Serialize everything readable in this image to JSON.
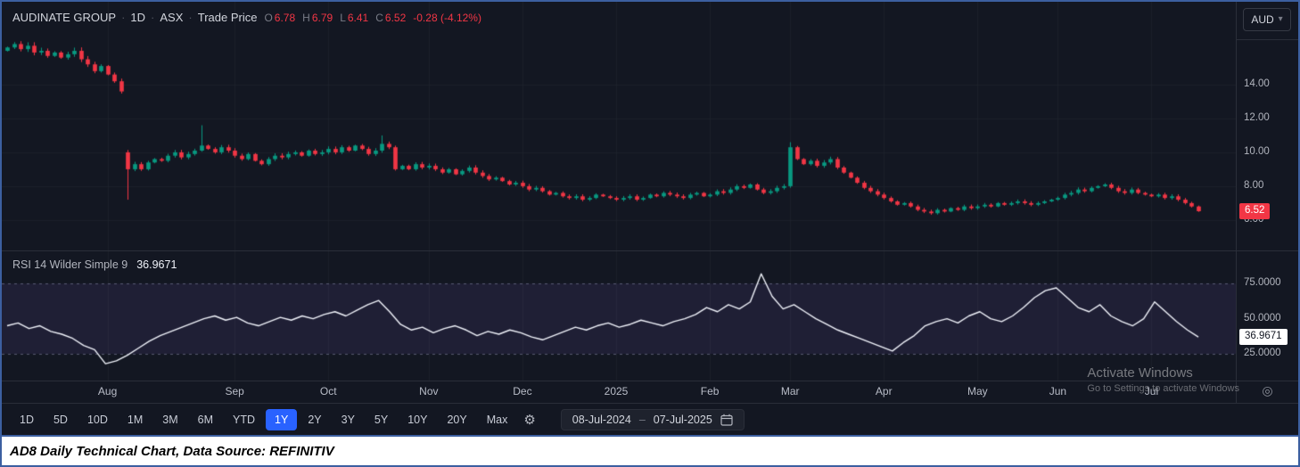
{
  "header": {
    "symbol": "AUDINATE GROUP",
    "separator": "·",
    "interval": "1D",
    "exchange": "ASX",
    "series_type": "Trade Price",
    "ohlc": {
      "o_label": "O",
      "o": "6.78",
      "h_label": "H",
      "h": "6.79",
      "l_label": "L",
      "l": "6.41",
      "c_label": "C",
      "c": "6.52",
      "change": "-0.28 (-4.12%)"
    },
    "currency_button": "AUD"
  },
  "price_axis": {
    "labels": [
      "14.00",
      "12.00",
      "10.00",
      "8.00",
      "6.00"
    ],
    "last_price_badge": "6.52"
  },
  "rsi_pane": {
    "label": "RSI 14 Wilder Simple 9",
    "value": "36.9671",
    "axis_labels": [
      "75.0000",
      "50.0000",
      "25.0000"
    ],
    "value_badge": "36.9671"
  },
  "toolbar": {
    "ranges": [
      "1D",
      "5D",
      "10D",
      "1M",
      "3M",
      "6M",
      "YTD",
      "1Y",
      "2Y",
      "3Y",
      "5Y",
      "10Y",
      "20Y",
      "Max"
    ],
    "active_range": "1Y",
    "date_from": "08-Jul-2024",
    "date_separator": "–",
    "date_to": "07-Jul-2025"
  },
  "watermark": {
    "line1": "Activate Windows",
    "line2": "Go to Settings to activate Windows"
  },
  "caption": "AD8 Daily Technical Chart, Data Source: REFINITIV",
  "icons": {
    "chevron_down": "▾",
    "gear": "⚙",
    "scale_target": "◎"
  },
  "colors": {
    "background": "#131722",
    "frame_border": "#3c5fa0",
    "pane_divider": "#2a2e39",
    "grid": "#1c202b",
    "up": "#089981",
    "down": "#f23645",
    "accent": "#2962ff",
    "axis_text": "#b2b5be",
    "text_primary": "#d1d4dc",
    "text_dim": "#787b86",
    "rsi_line": "#f0f3fa",
    "rsi_band": "rgba(126,87,194,0.12)",
    "rsi_band_line": "rgba(140,143,172,0.55)"
  },
  "chart_data": [
    {
      "type": "candlestick",
      "title": "AUDINATE GROUP 1D ASX Trade Price (AUD)",
      "ylabel": "Price (AUD)",
      "ylim": [
        4.2,
        18.9
      ],
      "grid_prices": [
        14,
        12,
        10,
        8,
        6
      ],
      "last_close": 6.52,
      "closes": [
        16.2,
        16.4,
        16.1,
        16.3,
        15.9,
        16.0,
        15.7,
        15.9,
        15.6,
        15.8,
        16.0,
        15.5,
        15.2,
        14.8,
        15.1,
        14.6,
        14.2,
        13.6,
        9.0,
        9.3,
        9.0,
        9.4,
        9.6,
        9.5,
        9.8,
        10.0,
        9.7,
        9.9,
        10.1,
        10.4,
        10.2,
        10.0,
        10.3,
        10.1,
        9.8,
        9.6,
        9.9,
        9.5,
        9.3,
        9.6,
        9.8,
        9.7,
        9.9,
        10.0,
        9.8,
        10.1,
        9.9,
        10.0,
        10.2,
        10.0,
        10.3,
        10.1,
        10.4,
        10.2,
        9.9,
        10.1,
        10.5,
        10.3,
        9.0,
        9.2,
        9.0,
        9.3,
        9.1,
        9.2,
        9.0,
        8.8,
        9.0,
        8.7,
        8.9,
        9.1,
        8.8,
        8.6,
        8.4,
        8.5,
        8.3,
        8.1,
        8.2,
        8.0,
        7.8,
        7.9,
        7.7,
        7.5,
        7.6,
        7.4,
        7.3,
        7.4,
        7.2,
        7.3,
        7.5,
        7.4,
        7.3,
        7.2,
        7.3,
        7.4,
        7.2,
        7.3,
        7.5,
        7.4,
        7.6,
        7.5,
        7.4,
        7.3,
        7.5,
        7.6,
        7.4,
        7.5,
        7.7,
        7.6,
        7.8,
        8.0,
        7.9,
        8.1,
        7.8,
        7.6,
        7.7,
        7.9,
        8.0,
        10.3,
        9.6,
        9.3,
        9.5,
        9.2,
        9.4,
        9.6,
        9.1,
        8.8,
        8.5,
        8.2,
        7.9,
        7.7,
        7.5,
        7.3,
        7.1,
        6.9,
        7.0,
        6.8,
        6.6,
        6.5,
        6.4,
        6.6,
        6.5,
        6.7,
        6.6,
        6.8,
        6.7,
        6.8,
        6.9,
        6.8,
        7.0,
        6.9,
        7.0,
        7.1,
        7.0,
        6.9,
        7.0,
        7.1,
        7.2,
        7.3,
        7.5,
        7.6,
        7.8,
        7.7,
        7.9,
        8.0,
        8.1,
        7.9,
        7.7,
        7.6,
        7.8,
        7.6,
        7.5,
        7.4,
        7.5,
        7.3,
        7.4,
        7.2,
        7.0,
        6.8,
        6.52
      ],
      "open_overrides": {
        "0": 16.0,
        "18": 10.0
      },
      "wick_overrides": {
        "18": {
          "low": 7.2
        },
        "29": {
          "high": 11.6
        },
        "56": {
          "high": 11.0
        },
        "117": {
          "high": 10.6
        }
      },
      "month_ticks": [
        {
          "label": "Aug",
          "index": 15
        },
        {
          "label": "Sep",
          "index": 34
        },
        {
          "label": "Oct",
          "index": 48
        },
        {
          "label": "Nov",
          "index": 63
        },
        {
          "label": "Dec",
          "index": 77
        },
        {
          "label": "2025",
          "index": 91
        },
        {
          "label": "Feb",
          "index": 105
        },
        {
          "label": "Mar",
          "index": 117
        },
        {
          "label": "Apr",
          "index": 131
        },
        {
          "label": "May",
          "index": 145
        },
        {
          "label": "Jun",
          "index": 157
        },
        {
          "label": "Jul",
          "index": 171
        }
      ]
    },
    {
      "type": "line",
      "title": "RSI 14 Wilder Simple 9",
      "ylim": [
        6,
        98
      ],
      "bands": [
        75,
        25
      ],
      "midline": 50,
      "last_value": 36.9671,
      "values": [
        45,
        47,
        43,
        45,
        41,
        39,
        36,
        31,
        28,
        18,
        20,
        24,
        29,
        34,
        38,
        41,
        44,
        47,
        50,
        52,
        49,
        51,
        47,
        45,
        48,
        51,
        49,
        52,
        50,
        53,
        55,
        52,
        56,
        60,
        63,
        55,
        46,
        42,
        44,
        40,
        43,
        45,
        42,
        38,
        41,
        39,
        42,
        40,
        37,
        35,
        38,
        41,
        44,
        42,
        45,
        47,
        44,
        46,
        49,
        47,
        45,
        48,
        50,
        53,
        58,
        55,
        60,
        57,
        62,
        82,
        66,
        57,
        60,
        55,
        50,
        46,
        42,
        39,
        36,
        33,
        30,
        27,
        33,
        38,
        45,
        48,
        50,
        47,
        52,
        55,
        50,
        48,
        52,
        58,
        65,
        70,
        72,
        65,
        58,
        55,
        60,
        52,
        48,
        45,
        50,
        62,
        55,
        48,
        42,
        36.9671
      ]
    }
  ]
}
